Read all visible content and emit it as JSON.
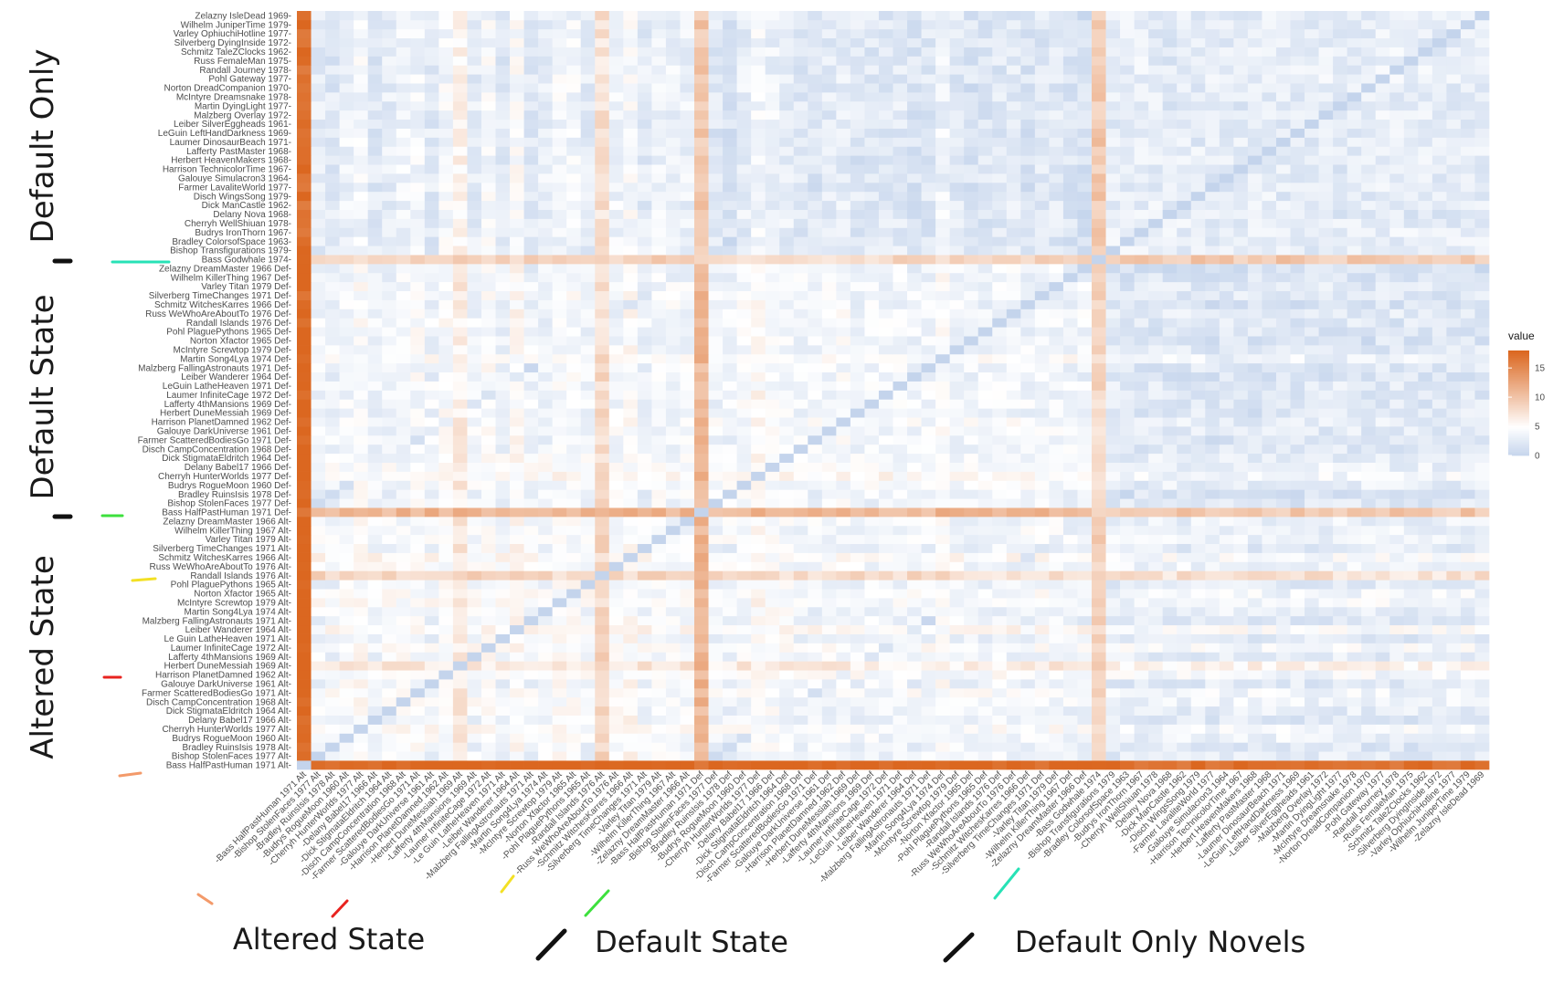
{
  "chart_data": {
    "type": "heatmap",
    "title": "",
    "legend": {
      "title": "value",
      "ticks": [
        0,
        5,
        10,
        15
      ],
      "range": [
        0,
        18
      ],
      "position": "right"
    },
    "colors": {
      "low": "#c4d4ec",
      "mid": "#ffffff",
      "high": "#db6720",
      "mid_value": 5
    },
    "group_labels": {
      "y": [
        "Altered State",
        "Default State",
        "Default Only"
      ],
      "x": [
        "Altered State",
        "Default State",
        "Default Only Novels"
      ]
    },
    "labels": [
      "Bass HalfPastHuman 1971 Alt",
      "Bishop StolenFaces 1977 Alt",
      "Bradley RuinsIsis 1978 Alt",
      "Budrys RogueMoon 1960 Alt",
      "Cherryh HunterWorlds 1977 Alt",
      "Delany Babel17 1966 Alt",
      "Dick StigmataEldritch 1964 Alt",
      "Disch CampConcentration 1968 Alt",
      "Farmer ScatteredBodiesGo 1971 Alt",
      "Galouye DarkUniverse 1961 Alt",
      "Harrison PlanetDamned 1962 Alt",
      "Herbert DuneMessiah 1969 Alt",
      "Lafferty 4thMansions 1969 Alt",
      "Laumer InfiniteCage 1972 Alt",
      "Le Guin LatheHeaven 1971 Alt",
      "Leiber Wanderer 1964 Alt",
      "Malzberg FallingAstronauts 1971 Alt",
      "Martin Song4Lya 1974 Alt",
      "McIntyre Screwtop 1979 Alt",
      "Norton Xfactor 1965 Alt",
      "Pohl PlaguePythons 1965 Alt",
      "Randall Islands 1976 Alt",
      "Russ WeWhoAreAboutTo 1976 Alt",
      "Schmitz WitchesKarres 1966 Alt",
      "Silverberg TimeChanges 1971 Alt",
      "Varley Titan 1979 Alt",
      "Wilhelm KillerThing 1967 Alt",
      "Zelazny DreamMaster 1966 Alt",
      "Bass HalfPastHuman 1971 Def",
      "Bishop StolenFaces 1977 Def",
      "Bradley RuinsIsis 1978 Def",
      "Budrys RogueMoon 1960 Def",
      "Cherryh HunterWorlds 1977 Def",
      "Delany Babel17 1966 Def",
      "Dick StigmataEldritch 1964 Def",
      "Disch CampConcentration 1968 Def",
      "Farmer ScatteredBodiesGo 1971 Def",
      "Galouye DarkUniverse 1961 Def",
      "Harrison PlanetDamned 1962 Def",
      "Herbert DuneMessiah 1969 Def",
      "Lafferty 4thMansions 1969 Def",
      "Laumer InfiniteCage 1972 Def",
      "LeGuin LatheHeaven 1971 Def",
      "Leiber Wanderer 1964 Def",
      "Malzberg FallingAstronauts 1971 Def",
      "Martin Song4Lya 1974 Def",
      "McIntyre Screwtop 1979 Def",
      "Norton Xfactor 1965 Def",
      "Pohl PlaguePythons 1965 Def",
      "Randall Islands 1976 Def",
      "Russ WeWhoAreAboutTo 1976 Def",
      "Schmitz WitchesKarres 1966 Def",
      "Silverberg TimeChanges 1971 Def",
      "Varley Titan 1979 Def",
      "Wilhelm KillerThing 1967 Def",
      "Zelazny DreamMaster 1966 Def",
      "Bass Godwhale 1974",
      "Bishop Transfigurations 1979",
      "Bradley ColorsofSpace 1963",
      "Budrys IronThorn 1967",
      "Cherryh WellShiuan 1978",
      "Delany Nova 1968",
      "Dick ManCastle 1962",
      "Disch WingsSong 1979",
      "Farmer LavaliteWorld 1977",
      "Galouye Simulacron3 1964",
      "Harrison TechnicolorTime 1967",
      "Herbert HeavenMakers 1968",
      "Lafferty PastMaster 1968",
      "Laumer DinosaurBeach 1971",
      "LeGuin LeftHandDarkness 1969",
      "Leiber SilverEggheads 1961",
      "Malzberg Overlay 1972",
      "Martin DyingLight 1977",
      "McIntyre Dreamsnake 1978",
      "Norton DreadCompanion 1970",
      "Pohl Gateway 1977",
      "Randall Journey 1978",
      "Russ FemaleMan 1975",
      "Schmitz TaleZClocks 1962",
      "Silverberg DyingInside 1972",
      "Varley OphiuchiHotline 1977",
      "Wilhelm JuniperTime 1979",
      "Zelazny IsleDead 1969"
    ],
    "baseline_by_index": [
      18,
      3.2,
      2.8,
      4,
      4.6,
      2.8,
      3.4,
      4.2,
      4.4,
      3,
      4.6,
      6.5,
      3.2,
      4.8,
      3,
      5.2,
      2.8,
      3.6,
      4.5,
      4.4,
      3.2,
      8,
      4.2,
      5,
      3.2,
      4.2,
      4,
      3.8,
      11,
      3.4,
      3,
      4.2,
      5.2,
      4.6,
      4.2,
      3.6,
      3.4,
      3.8,
      4.2,
      3.6,
      3.6,
      3.6,
      3.8,
      3.2,
      3.4,
      4.8,
      3.6,
      3.2,
      3.4,
      3.6,
      3.8,
      2.8,
      3.6,
      3.6,
      3.2,
      2.8,
      9.5,
      2.6,
      2.8,
      3,
      2.6,
      2.4,
      2.8,
      2.2,
      2.6,
      2.6,
      2.4,
      2.6,
      2.8,
      2.6,
      2.8,
      2.2,
      2.8,
      2.4,
      2.8,
      2.6,
      3.2,
      2.6,
      2.4,
      3,
      2.4,
      2.6,
      2.6,
      2.6
    ],
    "block_shift": [
      [
        0.4,
        0.1,
        -0.5
      ],
      [
        0.1,
        0.2,
        -1.2
      ],
      [
        -0.5,
        -1.2,
        0.1
      ]
    ],
    "diagonal": 0,
    "pair_offset": 28
  },
  "marker_colors": {
    "orange": "#f39a6a",
    "red": "#e8231f",
    "yellow": "#f3e024",
    "green": "#3de03d",
    "teal": "#27e2b6",
    "black": "#111111"
  }
}
